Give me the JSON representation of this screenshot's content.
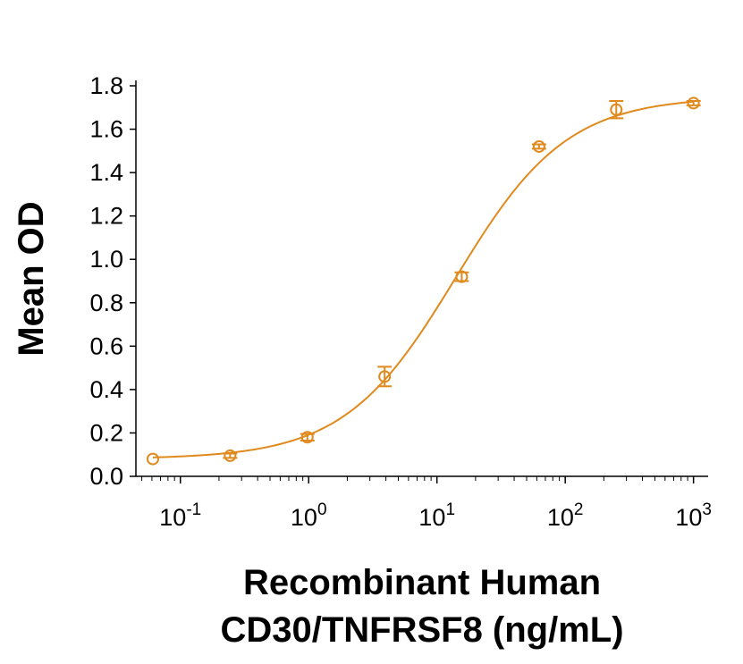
{
  "chart_data": {
    "type": "scatter",
    "title": "",
    "xlabel_lines": [
      "Recombinant Human",
      "CD30/TNFRSF8 (ng/mL)"
    ],
    "ylabel": "Mean OD",
    "x_scale": "log",
    "xlim": [
      0.045,
      1300
    ],
    "ylim": [
      0,
      1.8
    ],
    "grid": false,
    "x_ticks": [
      {
        "value": 0.1,
        "base": "10",
        "exp": "-1"
      },
      {
        "value": 1,
        "base": "10",
        "exp": "0"
      },
      {
        "value": 10,
        "base": "10",
        "exp": "1"
      },
      {
        "value": 100,
        "base": "10",
        "exp": "2"
      },
      {
        "value": 1000,
        "base": "10",
        "exp": "3"
      }
    ],
    "y_ticks": [
      {
        "value": 0.0,
        "label": "0.0"
      },
      {
        "value": 0.2,
        "label": "0.2"
      },
      {
        "value": 0.4,
        "label": "0.4"
      },
      {
        "value": 0.6,
        "label": "0.6"
      },
      {
        "value": 0.8,
        "label": "0.8"
      },
      {
        "value": 1.0,
        "label": "1.0"
      },
      {
        "value": 1.2,
        "label": "1.2"
      },
      {
        "value": 1.4,
        "label": "1.4"
      },
      {
        "value": 1.6,
        "label": "1.6"
      },
      {
        "value": 1.8,
        "label": "1.8"
      }
    ],
    "series": [
      {
        "color": "#E08A1E",
        "points": [
          {
            "x": 0.061,
            "y": 0.08,
            "err": 0.0
          },
          {
            "x": 0.244,
            "y": 0.095,
            "err": 0.01
          },
          {
            "x": 0.977,
            "y": 0.18,
            "err": 0.015
          },
          {
            "x": 3.91,
            "y": 0.46,
            "err": 0.045
          },
          {
            "x": 15.6,
            "y": 0.92,
            "err": 0.02
          },
          {
            "x": 62.5,
            "y": 1.52,
            "err": 0.01
          },
          {
            "x": 250,
            "y": 1.69,
            "err": 0.04
          },
          {
            "x": 1000,
            "y": 1.72,
            "err": 0.01
          }
        ],
        "fit": {
          "model": "4PL",
          "bottom": 0.08,
          "top": 1.75,
          "ec50": 14,
          "hill": 1.0
        }
      }
    ]
  }
}
